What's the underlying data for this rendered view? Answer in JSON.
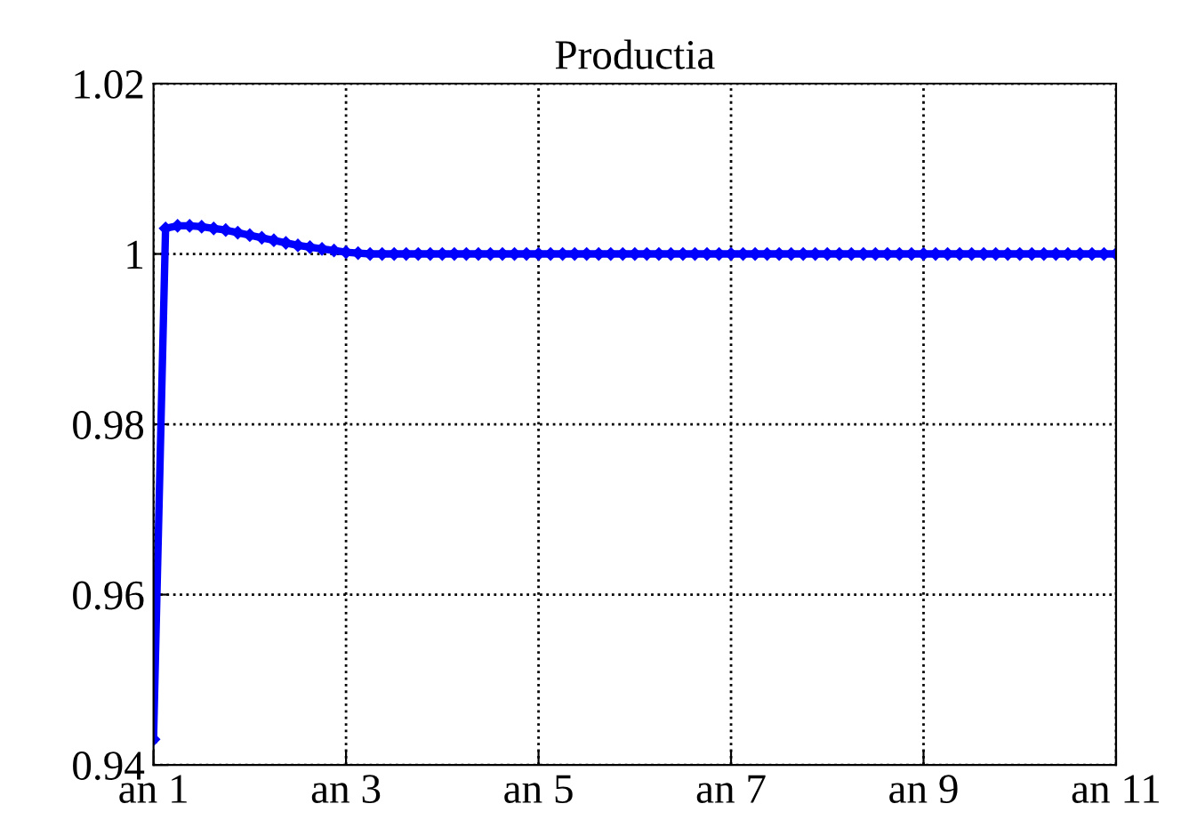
{
  "chart_data": {
    "type": "line",
    "title": "Productia",
    "categories": [
      "an 1",
      null,
      null,
      null,
      null,
      null,
      null,
      null,
      null,
      null,
      null,
      null,
      null,
      null,
      null,
      null,
      "an 3",
      null,
      null,
      null,
      null,
      null,
      null,
      null,
      null,
      null,
      null,
      null,
      null,
      null,
      null,
      null,
      "an 5",
      null,
      null,
      null,
      null,
      null,
      null,
      null,
      null,
      null,
      null,
      null,
      null,
      null,
      null,
      null,
      "an 7",
      null,
      null,
      null,
      null,
      null,
      null,
      null,
      null,
      null,
      null,
      null,
      null,
      null,
      null,
      null,
      "an 9",
      null,
      null,
      null,
      null,
      null,
      null,
      null,
      null,
      null,
      null,
      null,
      null,
      null,
      null,
      null,
      "an 11"
    ],
    "series": [
      {
        "color": "#0000ff",
        "values": [
          0.943,
          1.003,
          1.0033,
          1.0033,
          1.0032,
          1.003,
          1.0028,
          1.0025,
          1.0022,
          1.0019,
          1.0016,
          1.0013,
          1.001,
          1.0008,
          1.0006,
          1.0004,
          1.0002,
          1.0001,
          1.0,
          1.0,
          1.0,
          1.0,
          1.0,
          1.0,
          1.0,
          1.0,
          1.0,
          1.0,
          1.0,
          1.0,
          1.0,
          1.0,
          1.0,
          1.0,
          1.0,
          1.0,
          1.0,
          1.0,
          1.0,
          1.0,
          1.0,
          1.0,
          1.0,
          1.0,
          1.0,
          1.0,
          1.0,
          1.0,
          1.0,
          1.0,
          1.0,
          1.0,
          1.0,
          1.0,
          1.0,
          1.0,
          1.0,
          1.0,
          1.0,
          1.0,
          1.0,
          1.0,
          1.0,
          1.0,
          1.0,
          1.0,
          1.0,
          1.0,
          1.0,
          1.0,
          1.0,
          1.0,
          1.0,
          1.0,
          1.0,
          1.0,
          1.0,
          1.0,
          1.0,
          1.0,
          1.0
        ]
      }
    ],
    "ylim": [
      0.94,
      1.02
    ],
    "yticks": [
      {
        "value": 0.94,
        "label": "0.94"
      },
      {
        "value": 0.96,
        "label": "0.96"
      },
      {
        "value": 0.98,
        "label": "0.98"
      },
      {
        "value": 1,
        "label": "1"
      },
      {
        "value": 1.02,
        "label": "1.02"
      }
    ],
    "grid": true,
    "marker": "diamond",
    "line_style": "solid"
  }
}
